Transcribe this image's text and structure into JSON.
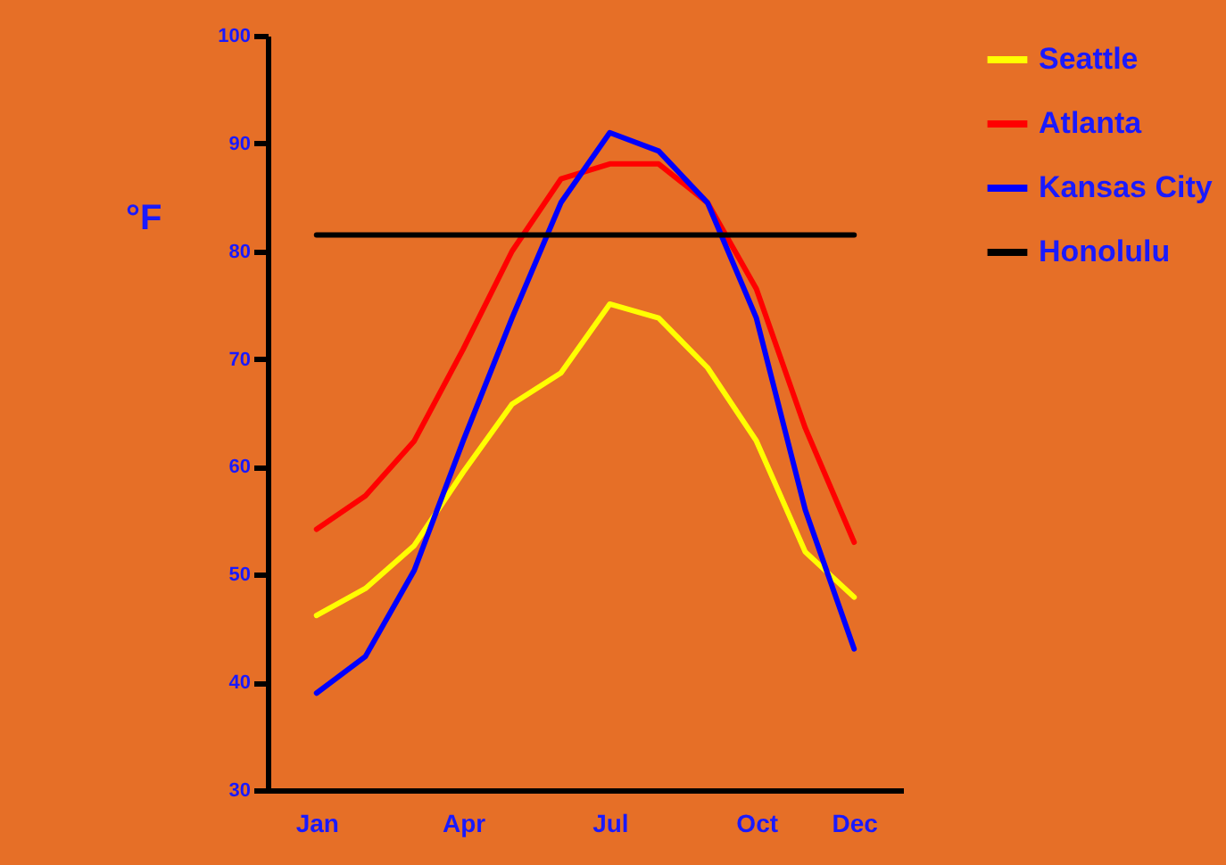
{
  "chart_data": {
    "type": "line",
    "categories": [
      "Jan",
      null,
      null,
      "Apr",
      null,
      null,
      "Jul",
      null,
      null,
      "Oct",
      null,
      "Dec"
    ],
    "ylabel": "°F",
    "ylim": [
      30,
      100
    ],
    "yticks": [
      30,
      40,
      50,
      60,
      70,
      80,
      90,
      100
    ],
    "grid": false,
    "legend": "right",
    "marker": "none",
    "line_style": "solid",
    "series": [
      {
        "name": "Seattle",
        "color": "#ffff00",
        "values": [
          46.2,
          48.7,
          52.7,
          59.5,
          65.8,
          68.7,
          75.1,
          73.8,
          69.2,
          62.4,
          52.1,
          47.9
        ]
      },
      {
        "name": "Atlanta",
        "color": "#ff0000",
        "values": [
          54.2,
          57.3,
          62.4,
          70.9,
          80,
          86.7,
          88.1,
          88.1,
          84.5,
          76.5,
          63.6,
          53
        ]
      },
      {
        "name": "Kansas City",
        "color": "#0000ff",
        "values": [
          39,
          42.4,
          50.4,
          62.4,
          73.8,
          84.5,
          91,
          89.3,
          84.5,
          73.8,
          56,
          43.1
        ]
      },
      {
        "name": "Honolulu",
        "color": "#000000",
        "values": [
          81.5,
          81.5,
          81.5,
          81.5,
          81.5,
          81.5,
          81.5,
          81.5,
          81.5,
          81.5,
          81.5,
          81.5
        ]
      }
    ]
  }
}
